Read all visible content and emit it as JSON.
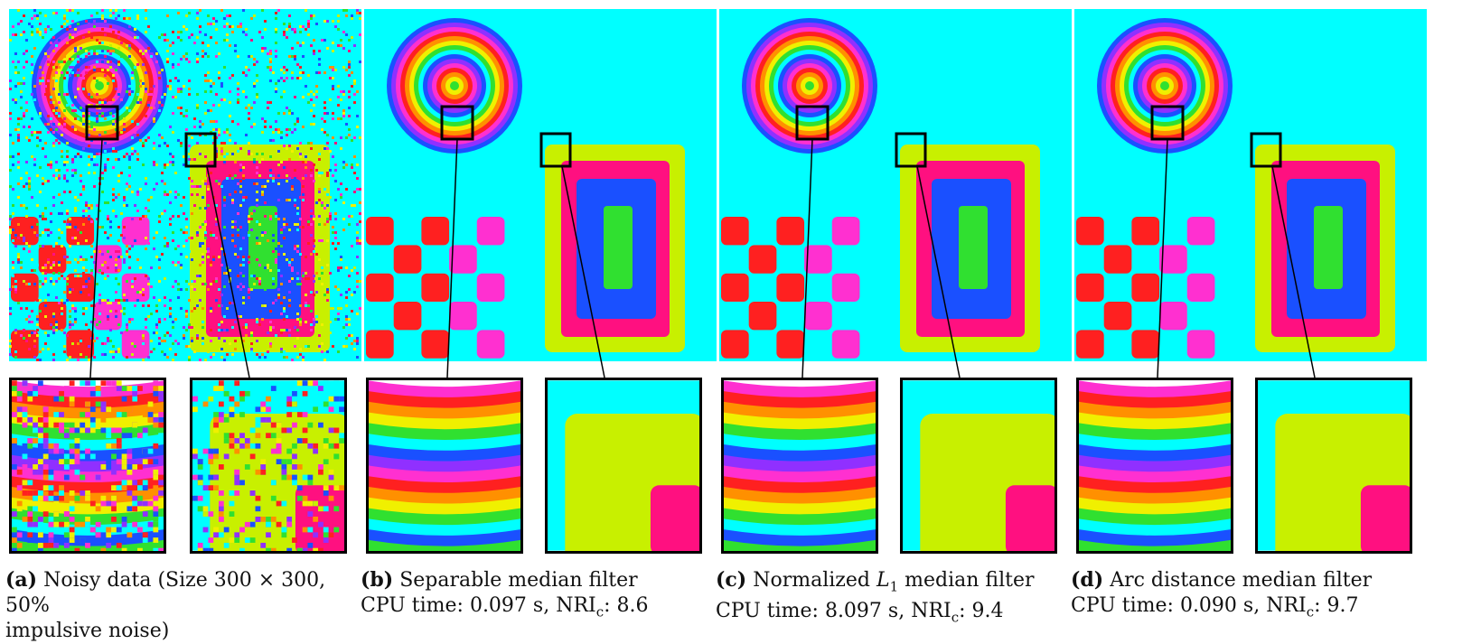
{
  "panels": [
    {
      "id": "a",
      "label": "(a)",
      "caption_line1": "Noisy data (Size 300 × 300, 50%",
      "caption_line2": "impulsive noise)"
    },
    {
      "id": "b",
      "label": "(b)",
      "caption_line1": "Separable median filter",
      "caption_line2": "CPU time: 0.097 s, NRI",
      "nri_sub": "c",
      "nri_value": ": 8.6"
    },
    {
      "id": "c",
      "label": "(c)",
      "caption_line1_pre": "Normalized ",
      "caption_line1_math": "L",
      "caption_line1_sub": "1",
      "caption_line1_post": " median filter",
      "caption_line2": "CPU time: 8.097 s, NRI",
      "nri_sub": "c",
      "nri_value": ": 9.4"
    },
    {
      "id": "d",
      "label": "(d)",
      "caption_line1": "Arc distance median filter",
      "caption_line2": "CPU time: 0.090 s, NRI",
      "nri_sub": "c",
      "nri_value": ": 9.7"
    }
  ],
  "colors": {
    "background": "#00ffff",
    "red": "#ff2020",
    "magenta": "#ff30d0",
    "pink": "#ff1080",
    "blue": "#1a50ff",
    "green": "#30e030",
    "yellow_green": "#c8f000",
    "orange": "#ff9000",
    "yellow": "#f0f000"
  }
}
